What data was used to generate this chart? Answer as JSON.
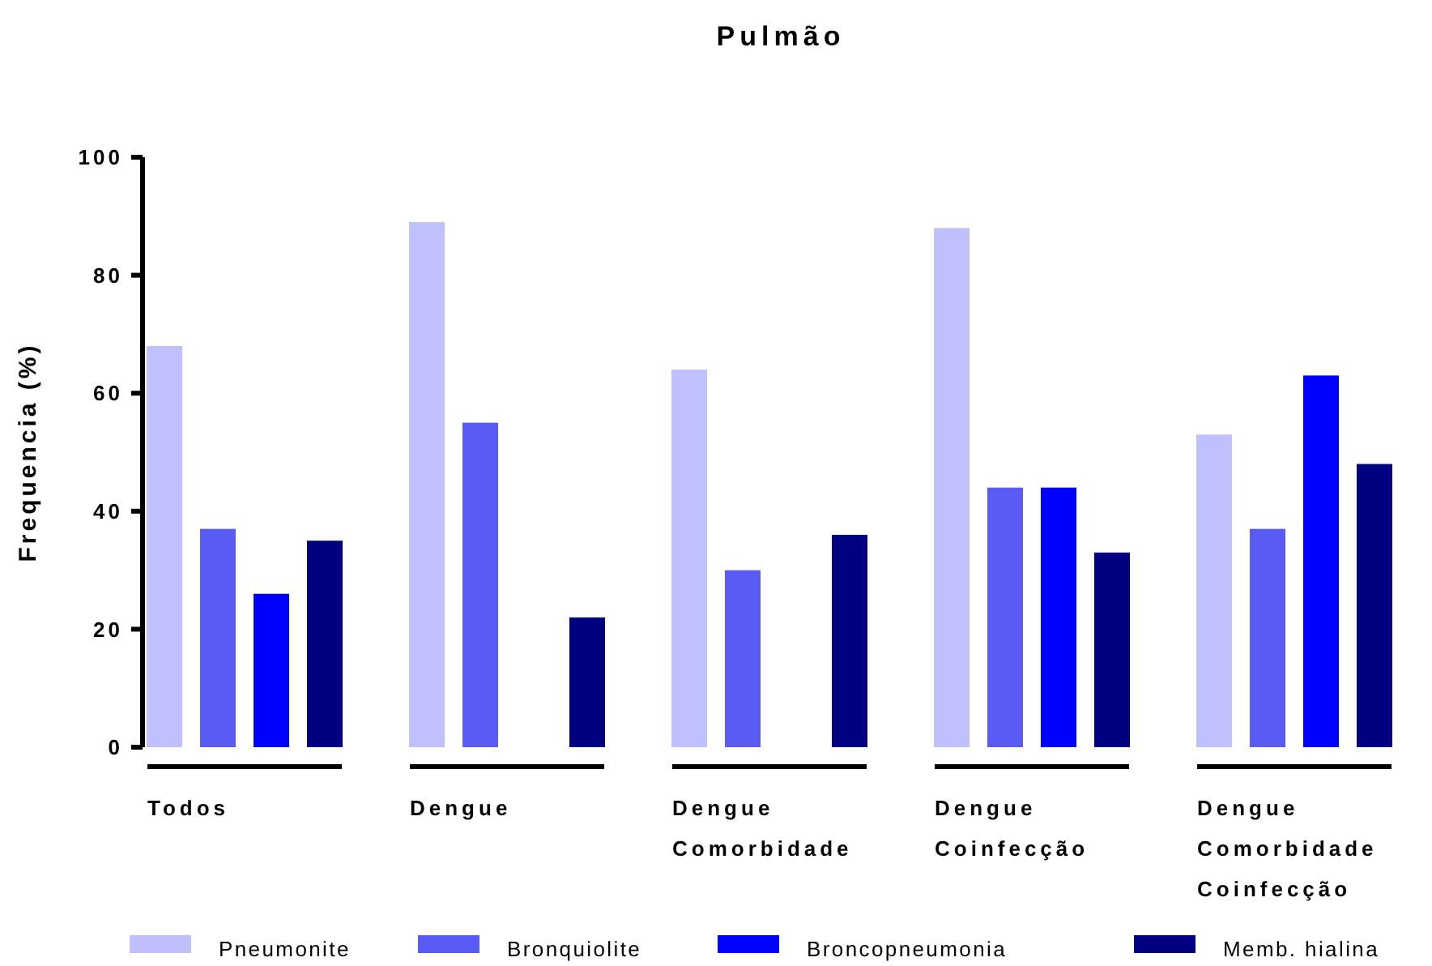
{
  "chart_data": {
    "type": "bar",
    "title": "Pulmão",
    "ylabel": "Frequencia (%)",
    "categories": [
      "Todos",
      "Dengue",
      "Dengue\nComorbidade",
      "Dengue\nCoinfecção",
      "Dengue\nComorbidade\nCoinfecção"
    ],
    "series": [
      {
        "name": "Pneumonite",
        "color": "#c0c0ff",
        "values": [
          68,
          89,
          64,
          88,
          53
        ]
      },
      {
        "name": "Bronquiolite",
        "color": "#5a5af5",
        "values": [
          37,
          55,
          30,
          44,
          37
        ]
      },
      {
        "name": "Broncopneumonia",
        "color": "#0000ff",
        "values": [
          26,
          null,
          null,
          44,
          63
        ]
      },
      {
        "name": "Memb. hialina",
        "color": "#000080",
        "values": [
          35,
          22,
          36,
          33,
          48
        ]
      }
    ],
    "ylim": [
      0,
      100
    ],
    "yticks": [
      0,
      20,
      40,
      60,
      80,
      100
    ],
    "grid": false,
    "legend": "bottom"
  }
}
